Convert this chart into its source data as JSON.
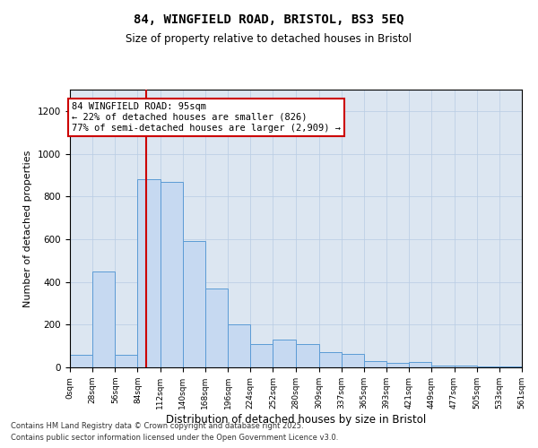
{
  "title_line1": "84, WINGFIELD ROAD, BRISTOL, BS3 5EQ",
  "title_line2": "Size of property relative to detached houses in Bristol",
  "xlabel": "Distribution of detached houses by size in Bristol",
  "ylabel": "Number of detached properties",
  "annotation_title": "84 WINGFIELD ROAD: 95sqm",
  "annotation_line2": "← 22% of detached houses are smaller (826)",
  "annotation_line3": "77% of semi-detached houses are larger (2,909) →",
  "property_size_sqm": 95,
  "bin_edges": [
    0,
    28,
    56,
    84,
    112,
    140,
    168,
    196,
    224,
    252,
    280,
    309,
    337,
    365,
    393,
    421,
    449,
    477,
    505,
    533,
    561
  ],
  "bar_heights": [
    60,
    450,
    60,
    880,
    870,
    590,
    370,
    200,
    110,
    130,
    110,
    70,
    65,
    30,
    20,
    25,
    10,
    10,
    5,
    5
  ],
  "bar_color": "#c6d9f1",
  "bar_edge_color": "#5b9bd5",
  "vline_color": "#cc0000",
  "vline_x": 95,
  "annotation_box_color": "#cc0000",
  "annotation_bg_color": "#ffffff",
  "annotation_fontsize": 7.5,
  "grid_color": "#b8cce4",
  "bg_color": "#dce6f1",
  "ylim": [
    0,
    1300
  ],
  "yticks": [
    0,
    200,
    400,
    600,
    800,
    1000,
    1200
  ],
  "footer_line1": "Contains HM Land Registry data © Crown copyright and database right 2025.",
  "footer_line2": "Contains public sector information licensed under the Open Government Licence v3.0."
}
